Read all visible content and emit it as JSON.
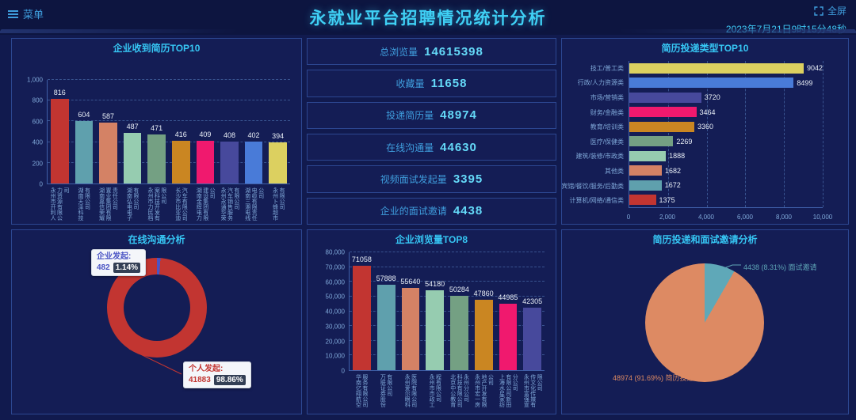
{
  "header": {
    "menu_label": "菜单",
    "title": "永就业平台招聘情况统计分析",
    "fullscreen_label": "全屏",
    "datetime": "2023年7月21日9时15分48秒"
  },
  "colors": {
    "accent": "#3fc8f4",
    "page_bg": "#111a4e",
    "panel_bg": "#141d55",
    "panel_border": "#2c4791",
    "axis_label": "#7fa8d8",
    "palette": [
      "#c23531",
      "#5fa0ad",
      "#d48265",
      "#96ccb0",
      "#74a083",
      "#ca8622",
      "#f0196e",
      "#47499c",
      "#497bd8",
      "#dcd060"
    ]
  },
  "stats": {
    "items": [
      {
        "label": "总浏览量",
        "value": "14615398"
      },
      {
        "label": "收藏量",
        "value": "11658"
      },
      {
        "label": "投递简历量",
        "value": "48974"
      },
      {
        "label": "在线沟通量",
        "value": "44630"
      },
      {
        "label": "视频面试发起量",
        "value": "3395"
      },
      {
        "label": "企业的面试邀请",
        "value": "4438"
      }
    ]
  },
  "chart_data": [
    {
      "id": "company-resume-top10",
      "type": "bar",
      "title": "企业收到简历TOP10",
      "categories": [
        "永州市开利人力资源有限公司",
        "湖南天泽科技有限公司",
        "湖南嘉信荣耀置业集团有限责任公司",
        "湖南弘电电子有限公司",
        "永州市力民档案科技开发有限公司",
        "长沙市比亚迪汽车有限公司",
        "湖南金辉电力建设集团有限公司",
        "永州永通华荣汽车销售服务有限公司",
        "湖南三湘电线电缆有限责任公司",
        "永州卜蜂超市有限公司"
      ],
      "values": [
        816,
        604,
        587,
        487,
        471,
        416,
        409,
        408,
        402,
        394
      ],
      "xlabel": "",
      "ylabel": "",
      "ylim": [
        0,
        1000
      ],
      "yticks": [
        "0",
        "200",
        "400",
        "600",
        "800",
        "1,000"
      ],
      "grid": true,
      "color_mode": "palette"
    },
    {
      "id": "resume-type-top10",
      "type": "bar",
      "orientation": "horizontal",
      "title": "简历投递类型TOP10",
      "categories": [
        "技工/普工类",
        "行政/人力资源类",
        "市场/营销类",
        "财务/金融类",
        "教育/培训类",
        "医疗/保健类",
        "建筑/装修/市政类",
        "其他类",
        "宾馆/餐饮/服务/后勤类",
        "计算机/网络/通信类"
      ],
      "values": [
        9042,
        8499,
        3720,
        3464,
        3360,
        2269,
        1888,
        1682,
        1672,
        1375
      ],
      "xlim": [
        0,
        10000
      ],
      "xticks": [
        "0",
        "2,000",
        "4,000",
        "6,000",
        "8,000",
        "10,000"
      ],
      "grid": true,
      "color_mode": "palette-reversed"
    },
    {
      "id": "online-communication",
      "type": "pie",
      "subtype": "donut",
      "title": "在线沟通分析",
      "legend_position": "callout",
      "slices": [
        {
          "name": "企业发起",
          "value": 482,
          "percent": "1.14%",
          "color": "#4a54c4"
        },
        {
          "name": "个人发起",
          "value": 41883,
          "percent": "98.86%",
          "color": "#c23531"
        }
      ]
    },
    {
      "id": "company-views-top8",
      "type": "bar",
      "title": "企业浏览量TOP8",
      "categories": [
        "华南亿翔航空服务有限公司",
        "万联证券股份有限公司",
        "永州爱尔眼科医院有限公司",
        "永州市市政工程有限公司",
        "北京中公教育科技有限公司永州分公司",
        "永州市宏一房地产开发有限公司",
        "上海水星家纺有限公司新田分公司",
        "永州市富强宣传文化传媒有限公司"
      ],
      "values": [
        71058,
        57888,
        55640,
        54180,
        50284,
        47860,
        44985,
        42305
      ],
      "xlabel": "",
      "ylabel": "",
      "ylim": [
        0,
        80000
      ],
      "yticks": [
        "0",
        "10,000",
        "20,000",
        "30,000",
        "40,000",
        "50,000",
        "60,000",
        "70,000",
        "80,000"
      ],
      "grid": true,
      "color_mode": "palette"
    },
    {
      "id": "resume-vs-invitation",
      "type": "pie",
      "title": "简历投递和面试邀请分析",
      "legend_position": "callout",
      "slices": [
        {
          "name": "面试邀请",
          "value": 4438,
          "percent": "8.31%",
          "color": "#5fa8b8"
        },
        {
          "name": "简历投递",
          "value": 48974,
          "percent": "91.69%",
          "color": "#dd8a63"
        }
      ]
    }
  ]
}
